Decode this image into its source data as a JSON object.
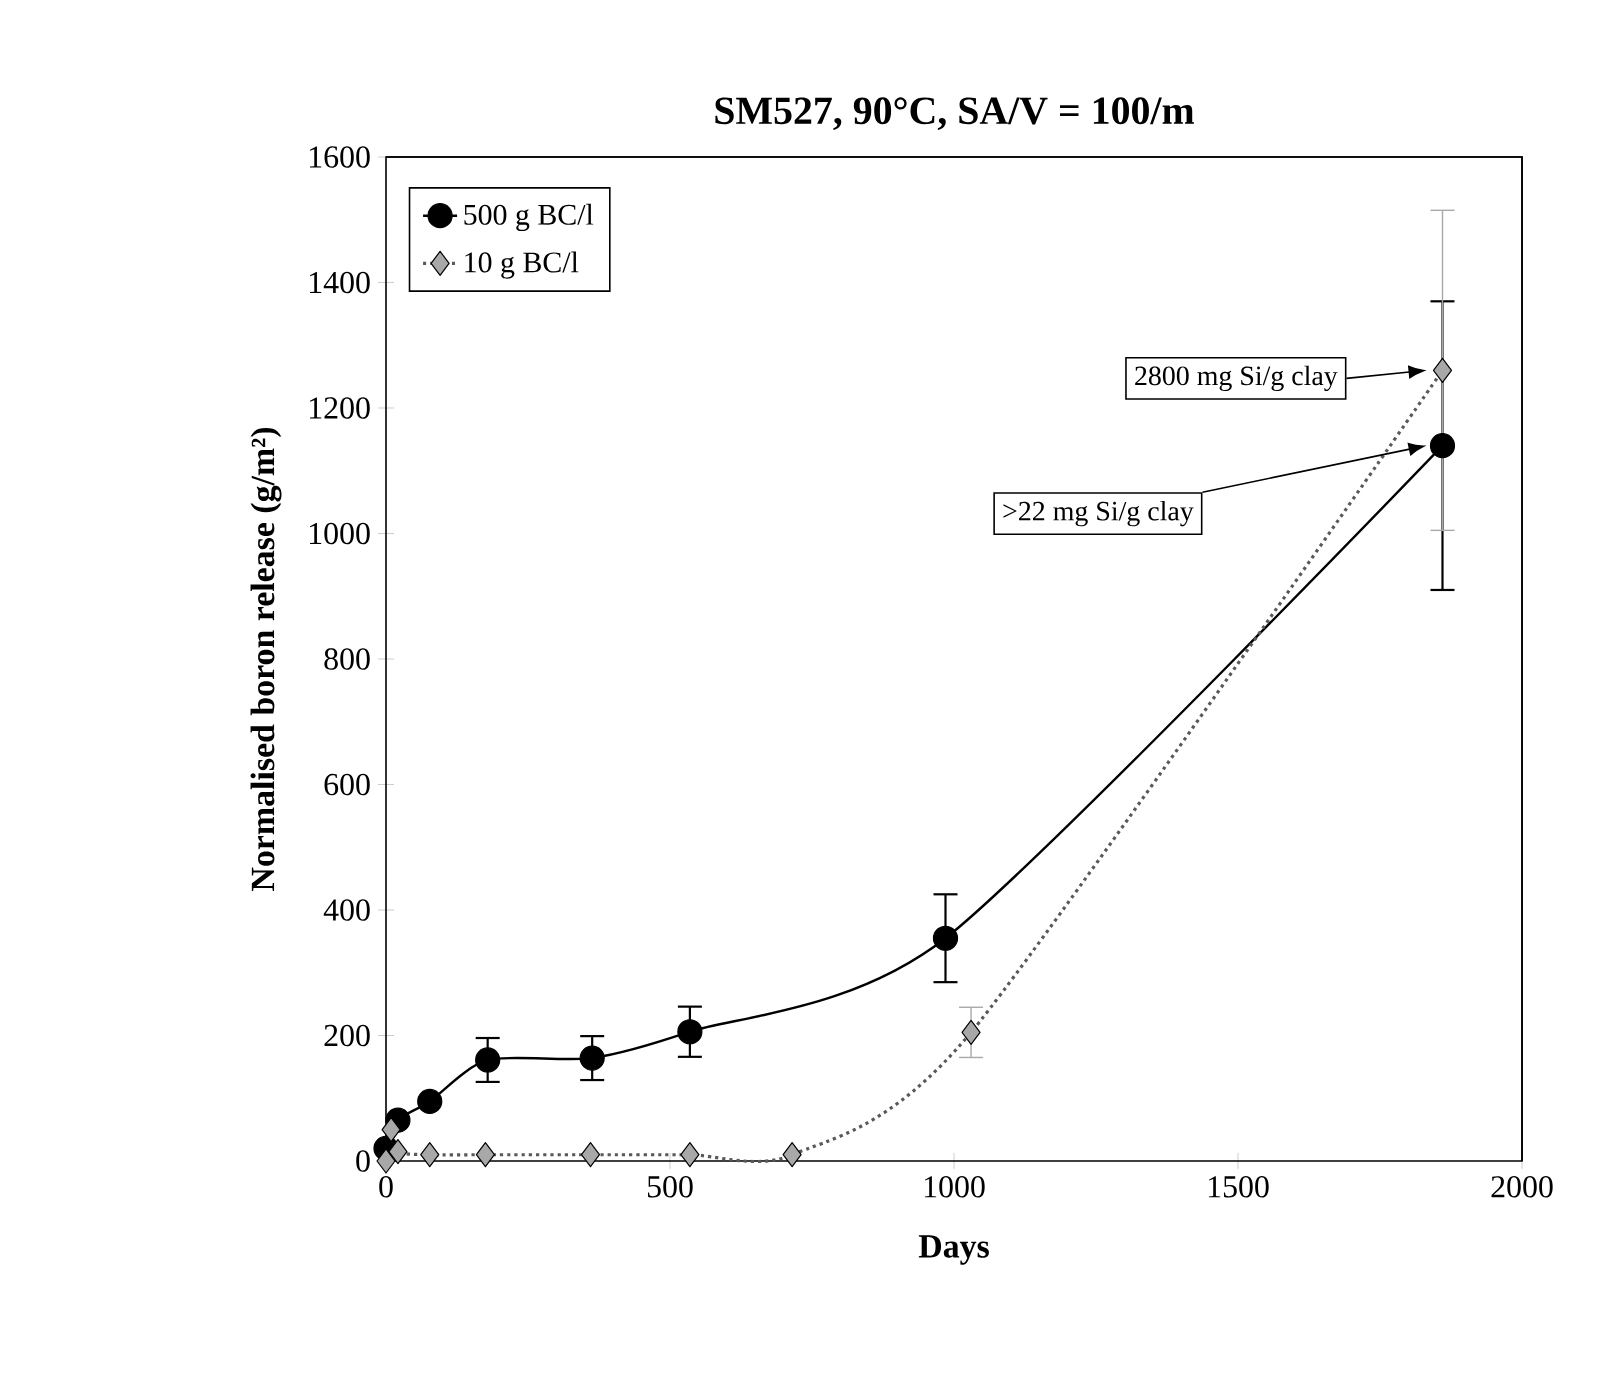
{
  "chart_data": {
    "type": "line",
    "title": "SM527, 90°C, SA/V = 100/m",
    "xlabel": "Days",
    "ylabel": "Normalised boron release (g/m²)",
    "xlim": [
      0,
      2000
    ],
    "ylim": [
      0,
      1600
    ],
    "xticks": [
      0,
      500,
      1000,
      1500,
      2000
    ],
    "yticks": [
      0,
      200,
      400,
      600,
      800,
      1000,
      1200,
      1400,
      1600
    ],
    "grid": false,
    "legend": "top left",
    "annotations": [
      "2800 mg Si/g clay",
      ">22 mg Si/g clay"
    ],
    "series": [
      {
        "name": "500 g BC/l",
        "color": "#000000",
        "marker": "circle",
        "line_style": "solid",
        "x": [
          0,
          21,
          77,
          179,
          363,
          535,
          985,
          1860
        ],
        "values": [
          20,
          65,
          95,
          161,
          164,
          206,
          355,
          1140
        ],
        "errors": [
          null,
          null,
          null,
          35,
          35,
          40,
          70,
          230
        ]
      },
      {
        "name": "10 g BC/l",
        "color": "#a8a8a8",
        "marker": "diamond",
        "line_style": "dotted",
        "x": [
          0,
          9,
          21,
          77,
          175,
          360,
          535,
          715,
          1030,
          1860
        ],
        "values": [
          0,
          50,
          15,
          10,
          10,
          10,
          10,
          10,
          205,
          1260
        ],
        "errors": [
          null,
          null,
          null,
          null,
          null,
          null,
          null,
          null,
          40,
          255
        ]
      }
    ]
  }
}
